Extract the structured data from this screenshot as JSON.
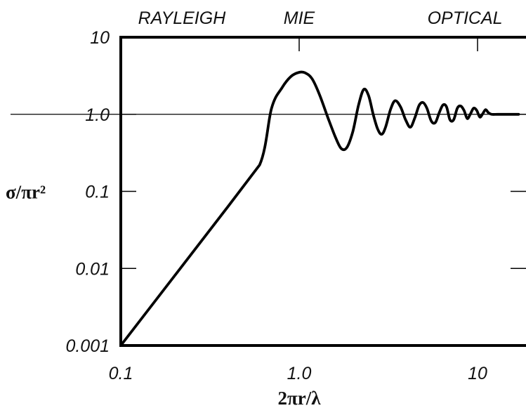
{
  "chart_data": {
    "type": "line",
    "title": "",
    "xlabel": "2πr/λ",
    "ylabel": "σ/πr²",
    "x_scale": "log",
    "y_scale": "log",
    "xlim": [
      0.1,
      20
    ],
    "ylim": [
      0.001,
      10
    ],
    "x_ticks": [
      {
        "value": 0.1,
        "label": "0.1"
      },
      {
        "value": 1.0,
        "label": "1.0"
      },
      {
        "value": 10,
        "label": "10"
      }
    ],
    "y_ticks": [
      {
        "value": 10,
        "label": "10"
      },
      {
        "value": 1.0,
        "label": "1.0"
      },
      {
        "value": 0.1,
        "label": "0.1"
      },
      {
        "value": 0.01,
        "label": "0.01"
      },
      {
        "value": 0.001,
        "label": "0.001"
      }
    ],
    "regimes": [
      {
        "label": "RAYLEIGH",
        "x": 0.22
      },
      {
        "label": "MIE",
        "x": 1.0
      },
      {
        "label": "OPTICAL",
        "x": 8.5
      }
    ],
    "reference_line": {
      "y": 1.0
    },
    "grid": false,
    "legend": "none",
    "series": [
      {
        "x": [
          0.1,
          0.2,
          0.4,
          0.6,
          0.7,
          0.8,
          0.9,
          1.0,
          1.08,
          1.18,
          1.3,
          1.45,
          1.6,
          1.72,
          1.85,
          2.0,
          2.15,
          2.3,
          2.45,
          2.6,
          2.75,
          2.9,
          3.05,
          3.25,
          3.45,
          3.7,
          3.95,
          4.2,
          4.45,
          4.7,
          4.95,
          5.2,
          5.5,
          5.8,
          6.1,
          6.4,
          6.7,
          7.0,
          7.35,
          7.7,
          8.05,
          8.4,
          8.75,
          9.1,
          9.5,
          9.9,
          10.3,
          10.7,
          11.1,
          11.5,
          12,
          13,
          15,
          17,
          20
        ],
        "y": [
          0.001,
          0.008,
          0.064,
          0.22,
          1.2,
          2.2,
          3.1,
          3.5,
          3.45,
          2.9,
          1.8,
          0.9,
          0.5,
          0.36,
          0.37,
          0.6,
          1.3,
          2.1,
          1.75,
          1.0,
          0.65,
          0.55,
          0.68,
          1.15,
          1.5,
          1.25,
          0.85,
          0.68,
          0.9,
          1.3,
          1.42,
          1.2,
          0.82,
          0.78,
          1.05,
          1.32,
          1.25,
          0.85,
          0.85,
          1.2,
          1.28,
          1.12,
          0.88,
          1.0,
          1.2,
          1.12,
          0.92,
          1.02,
          1.15,
          1.05,
          1.0,
          1.0,
          1.0,
          1.0,
          1.0
        ]
      }
    ]
  }
}
